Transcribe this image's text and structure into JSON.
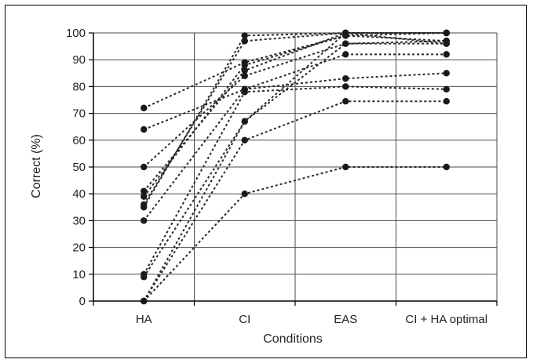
{
  "chart_data": {
    "type": "line",
    "xlabel": "Conditions",
    "ylabel": "Correct (%)",
    "categories": [
      "HA",
      "CI",
      "EAS",
      "CI + HA optimal"
    ],
    "ylim": [
      0,
      100
    ],
    "yticks": [
      0,
      10,
      20,
      30,
      40,
      50,
      60,
      70,
      80,
      90,
      100
    ],
    "grid": true,
    "line_style": "dotted",
    "marker": "circle",
    "series": [
      {
        "values": [
          72,
          89,
          99,
          100
        ]
      },
      {
        "values": [
          64,
          79,
          83,
          85
        ]
      },
      {
        "values": [
          50,
          84,
          96,
          97
        ]
      },
      {
        "values": [
          41,
          86,
          100,
          100
        ]
      },
      {
        "values": [
          39,
          88,
          99,
          97
        ]
      },
      {
        "values": [
          36,
          97,
          100,
          100
        ]
      },
      {
        "values": [
          35,
          99,
          100,
          100
        ]
      },
      {
        "values": [
          30,
          79,
          92,
          92
        ]
      },
      {
        "values": [
          10,
          78,
          80,
          79
        ]
      },
      {
        "values": [
          9,
          67,
          100,
          96
        ]
      },
      {
        "values": [
          0,
          67,
          96,
          96
        ]
      },
      {
        "values": [
          0,
          60,
          74.5,
          74.5
        ]
      },
      {
        "values": [
          0,
          40,
          50,
          50
        ]
      }
    ]
  },
  "colors": {
    "line": "#2a2a2a",
    "grid": "#4a4a4a",
    "marker": "#1a1a1a"
  }
}
